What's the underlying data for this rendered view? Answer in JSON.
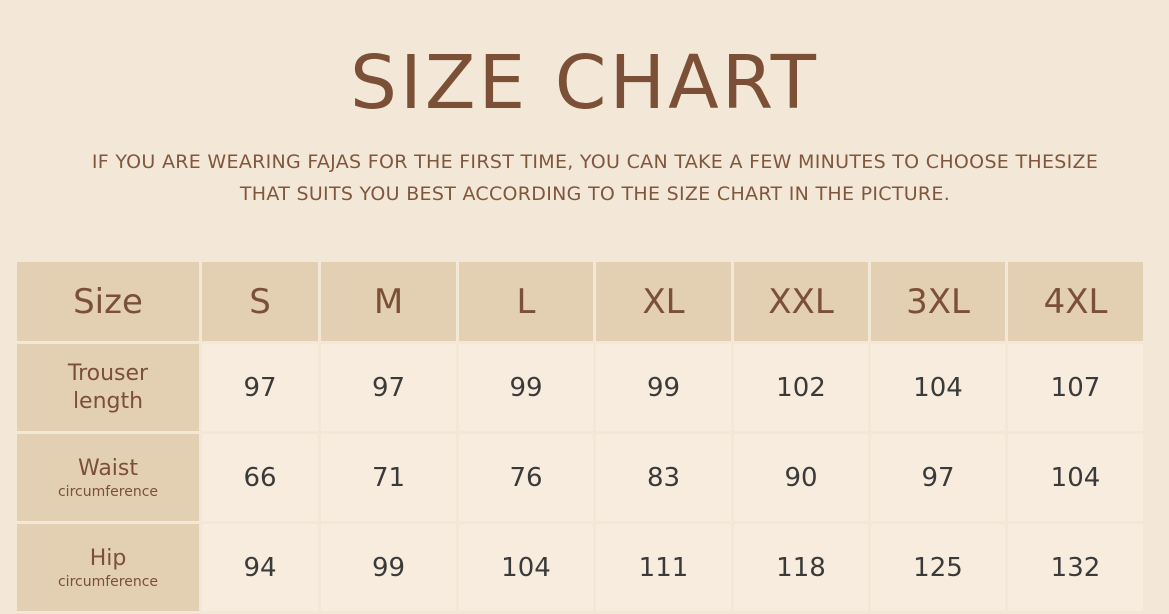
{
  "title": "SIZE CHART",
  "subtitle_line1": "IF YOU ARE WEARING FAJAS FOR THE FIRST TIME, YOU CAN TAKE A FEW MINUTES TO CHOOSE THESIZE",
  "subtitle_line2": "THAT SUITS YOU BEST ACCORDING TO THE SIZE CHART IN THE PICTURE.",
  "colors": {
    "background": "#f3e8d8",
    "header_cell": "#e3d0b2",
    "data_cell": "#f7ecde",
    "title": "#7b5036"
  },
  "table": {
    "header": [
      "Size",
      "S",
      "M",
      "L",
      "XL",
      "XXL",
      "3XL",
      "4XL"
    ],
    "rows": [
      {
        "label": "Trouser",
        "sublabel": "length",
        "values": [
          "97",
          "97",
          "99",
          "99",
          "102",
          "104",
          "107"
        ]
      },
      {
        "label": "Waist",
        "sublabel": "circumference",
        "values": [
          "66",
          "71",
          "76",
          "83",
          "90",
          "97",
          "104"
        ]
      },
      {
        "label": "Hip",
        "sublabel": "circumference",
        "values": [
          "94",
          "99",
          "104",
          "111",
          "118",
          "125",
          "132"
        ]
      }
    ]
  }
}
